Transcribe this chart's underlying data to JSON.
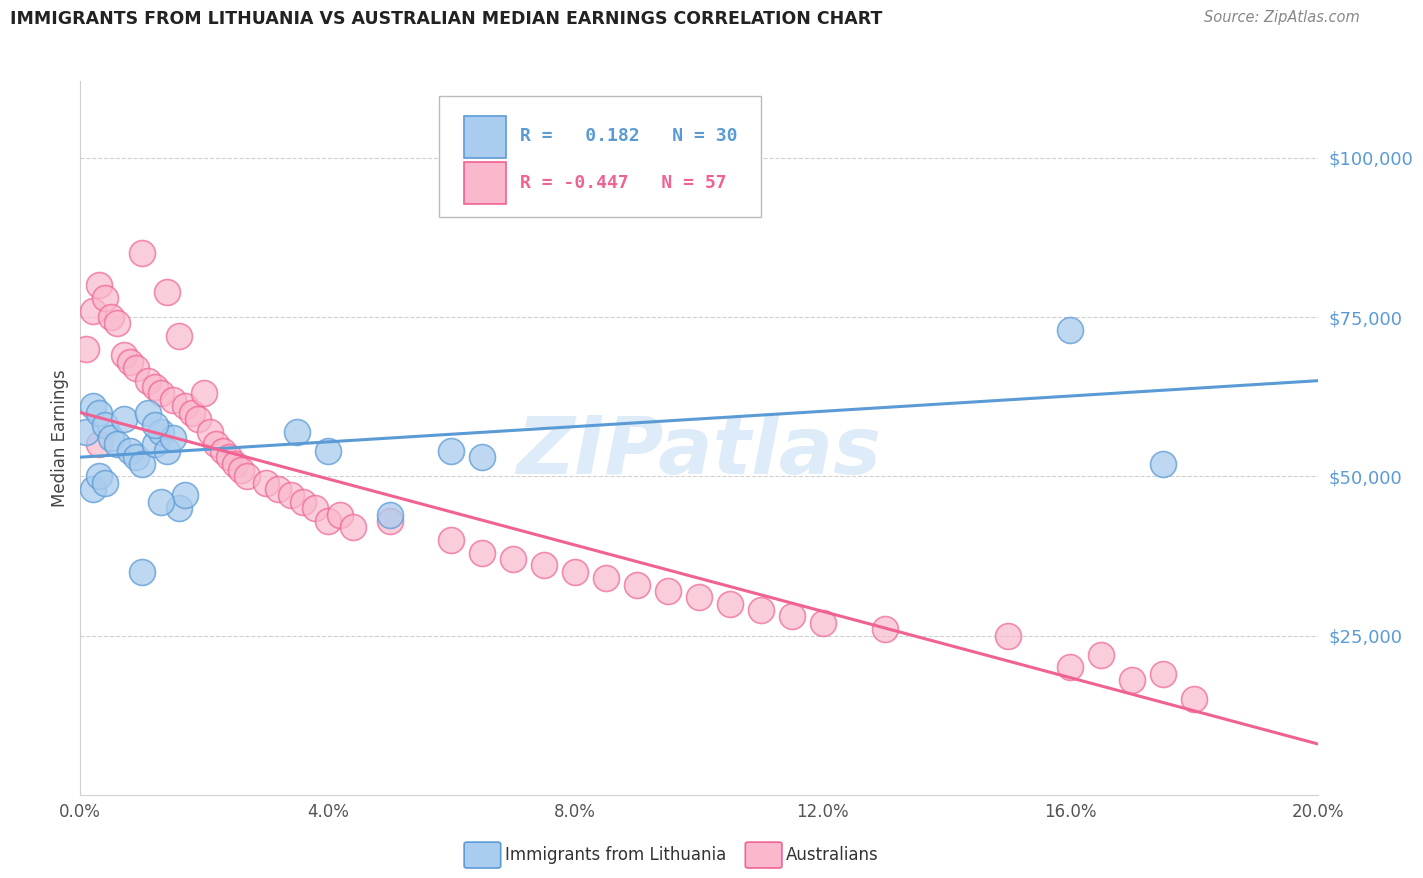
{
  "title": "IMMIGRANTS FROM LITHUANIA VS AUSTRALIAN MEDIAN EARNINGS CORRELATION CHART",
  "source": "Source: ZipAtlas.com",
  "ylabel": "Median Earnings",
  "ytick_labels": [
    "$25,000",
    "$50,000",
    "$75,000",
    "$100,000"
  ],
  "ytick_values": [
    25000,
    50000,
    75000,
    100000
  ],
  "ylim": [
    0,
    112000
  ],
  "xlim": [
    0.0,
    0.2
  ],
  "xtick_positions": [
    0.0,
    0.04,
    0.08,
    0.12,
    0.16,
    0.2
  ],
  "xtick_labels": [
    "0.0%",
    "4.0%",
    "8.0%",
    "12.0%",
    "16.0%",
    "20.0%"
  ],
  "legend_r_blue": "R =   0.182",
  "legend_n_blue": "N = 30",
  "legend_r_pink": "R = -0.447",
  "legend_n_pink": "N = 57",
  "watermark": "ZIPatlas",
  "blue_color": "#5b9bd5",
  "pink_color": "#f06292",
  "blue_fill": "#aaccee",
  "pink_fill": "#f9b8cc",
  "blue_points": [
    [
      0.001,
      57000
    ],
    [
      0.002,
      61000
    ],
    [
      0.003,
      60000
    ],
    [
      0.004,
      58000
    ],
    [
      0.005,
      56000
    ],
    [
      0.006,
      55000
    ],
    [
      0.007,
      59000
    ],
    [
      0.008,
      54000
    ],
    [
      0.009,
      53000
    ],
    [
      0.01,
      52000
    ],
    [
      0.011,
      60000
    ],
    [
      0.012,
      55000
    ],
    [
      0.013,
      57000
    ],
    [
      0.014,
      54000
    ],
    [
      0.015,
      56000
    ],
    [
      0.016,
      45000
    ],
    [
      0.017,
      47000
    ],
    [
      0.035,
      57000
    ],
    [
      0.04,
      54000
    ],
    [
      0.05,
      44000
    ],
    [
      0.06,
      54000
    ],
    [
      0.065,
      53000
    ],
    [
      0.16,
      73000
    ],
    [
      0.175,
      52000
    ],
    [
      0.01,
      35000
    ],
    [
      0.002,
      48000
    ],
    [
      0.003,
      50000
    ],
    [
      0.004,
      49000
    ],
    [
      0.012,
      58000
    ],
    [
      0.013,
      46000
    ]
  ],
  "pink_points": [
    [
      0.001,
      70000
    ],
    [
      0.002,
      76000
    ],
    [
      0.003,
      80000
    ],
    [
      0.004,
      78000
    ],
    [
      0.005,
      75000
    ],
    [
      0.006,
      74000
    ],
    [
      0.007,
      69000
    ],
    [
      0.008,
      68000
    ],
    [
      0.009,
      67000
    ],
    [
      0.01,
      85000
    ],
    [
      0.011,
      65000
    ],
    [
      0.012,
      64000
    ],
    [
      0.013,
      63000
    ],
    [
      0.014,
      79000
    ],
    [
      0.015,
      62000
    ],
    [
      0.016,
      72000
    ],
    [
      0.017,
      61000
    ],
    [
      0.018,
      60000
    ],
    [
      0.019,
      59000
    ],
    [
      0.02,
      63000
    ],
    [
      0.021,
      57000
    ],
    [
      0.022,
      55000
    ],
    [
      0.023,
      54000
    ],
    [
      0.024,
      53000
    ],
    [
      0.025,
      52000
    ],
    [
      0.026,
      51000
    ],
    [
      0.027,
      50000
    ],
    [
      0.03,
      49000
    ],
    [
      0.032,
      48000
    ],
    [
      0.034,
      47000
    ],
    [
      0.036,
      46000
    ],
    [
      0.038,
      45000
    ],
    [
      0.04,
      43000
    ],
    [
      0.042,
      44000
    ],
    [
      0.044,
      42000
    ],
    [
      0.05,
      43000
    ],
    [
      0.06,
      40000
    ],
    [
      0.065,
      38000
    ],
    [
      0.07,
      37000
    ],
    [
      0.075,
      36000
    ],
    [
      0.08,
      35000
    ],
    [
      0.085,
      34000
    ],
    [
      0.09,
      33000
    ],
    [
      0.095,
      32000
    ],
    [
      0.1,
      31000
    ],
    [
      0.105,
      30000
    ],
    [
      0.11,
      29000
    ],
    [
      0.115,
      28000
    ],
    [
      0.12,
      27000
    ],
    [
      0.13,
      26000
    ],
    [
      0.15,
      25000
    ],
    [
      0.16,
      20000
    ],
    [
      0.165,
      22000
    ],
    [
      0.17,
      18000
    ],
    [
      0.175,
      19000
    ],
    [
      0.18,
      15000
    ],
    [
      0.003,
      55000
    ]
  ],
  "blue_line_x": [
    0.0,
    0.2
  ],
  "blue_line_y": [
    53000,
    65000
  ],
  "pink_line_x": [
    0.0,
    0.2
  ],
  "pink_line_y": [
    60000,
    8000
  ],
  "ytick_color": "#5b9bd5",
  "xtick_color": "#555555",
  "grid_color": "#d0d0d0",
  "background_color": "#ffffff"
}
